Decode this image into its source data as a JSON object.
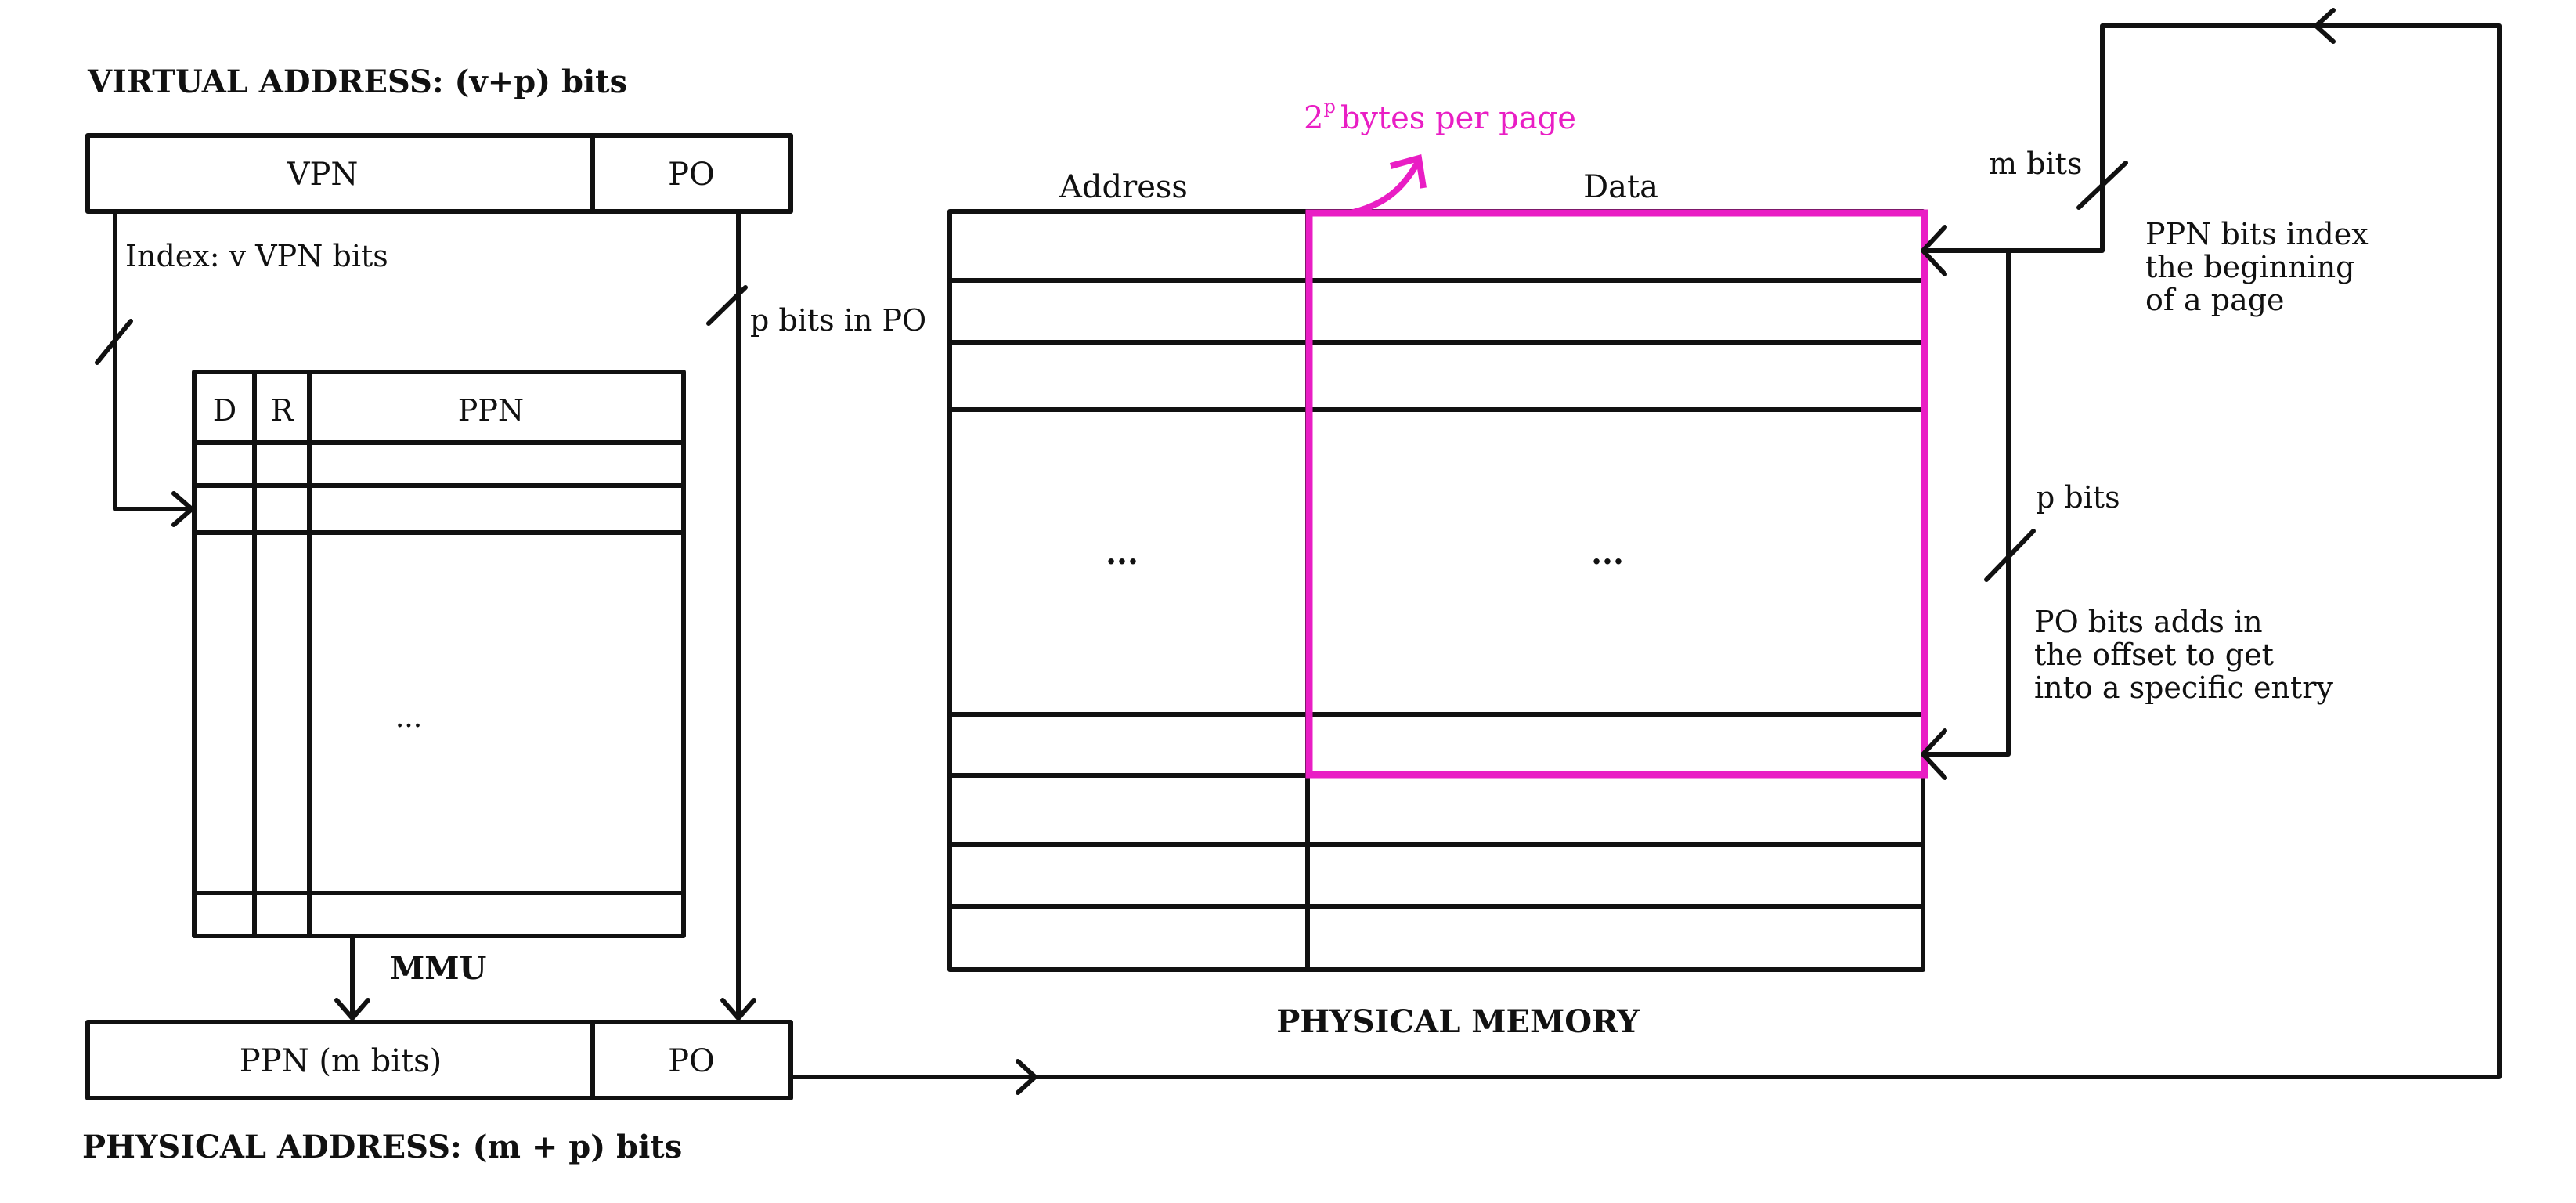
{
  "colors": {
    "ink": "#111111",
    "accent": "#e91ec4",
    "background": "#ffffff"
  },
  "virtual_address": {
    "title": "VIRTUAL ADDRESS: (v+p) bits",
    "vpn_label": "VPN",
    "po_label": "PO",
    "index_label": "Index: v VPN bits",
    "po_bits_label": "p bits in PO"
  },
  "mmu": {
    "label": "MMU",
    "headers": {
      "d": "D",
      "r": "R",
      "ppn": "PPN"
    },
    "ellipsis": "..."
  },
  "physical_address": {
    "title": "PHYSICAL ADDRESS: (m + p) bits",
    "ppn_label": "PPN (m bits)",
    "po_label": "PO"
  },
  "physical_memory": {
    "title": "PHYSICAL MEMORY",
    "address_header": "Address",
    "data_header": "Data",
    "address_ellipsis": "...",
    "data_ellipsis": "...",
    "page_size_base": "2",
    "page_size_exponent": "p",
    "page_size_suffix": "bytes per page"
  },
  "annotations": {
    "m_bits": "m bits",
    "ppn_note": [
      "PPN bits index",
      "the beginning",
      "of a page"
    ],
    "p_bits": "p bits",
    "po_note": [
      "PO bits  adds in",
      "the offset to get",
      "into a specific entry"
    ]
  }
}
